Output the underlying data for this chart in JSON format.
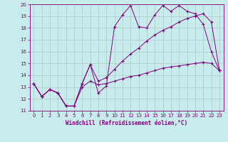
{
  "xlabel": "Windchill (Refroidissement éolien,°C)",
  "background_color": "#c8ecec",
  "line_color": "#800080",
  "grid_color": "#b0c8c8",
  "xlim": [
    -0.5,
    23.5
  ],
  "ylim": [
    11,
    20
  ],
  "xticks": [
    0,
    1,
    2,
    3,
    4,
    5,
    6,
    7,
    8,
    9,
    10,
    11,
    12,
    13,
    14,
    15,
    16,
    17,
    18,
    19,
    20,
    21,
    22,
    23
  ],
  "yticks": [
    11,
    12,
    13,
    14,
    15,
    16,
    17,
    18,
    19,
    20
  ],
  "line1_x": [
    0,
    1,
    2,
    3,
    4,
    5,
    6,
    7,
    8,
    9,
    10,
    11,
    12,
    13,
    14,
    15,
    16,
    17,
    18,
    19,
    20,
    21,
    22,
    23
  ],
  "line1_y": [
    13.3,
    12.2,
    12.8,
    12.5,
    11.4,
    11.4,
    13.3,
    14.9,
    12.5,
    13.1,
    18.1,
    19.1,
    19.9,
    18.1,
    18.0,
    19.1,
    19.9,
    19.4,
    19.9,
    19.4,
    19.2,
    18.3,
    16.0,
    14.4
  ],
  "line2_x": [
    0,
    1,
    2,
    3,
    4,
    5,
    6,
    7,
    8,
    9,
    10,
    11,
    12,
    13,
    14,
    15,
    16,
    17,
    18,
    19,
    20,
    21,
    22,
    23
  ],
  "line2_y": [
    13.3,
    12.2,
    12.8,
    12.5,
    11.4,
    11.4,
    13.3,
    14.9,
    13.5,
    13.8,
    14.5,
    15.2,
    15.8,
    16.3,
    16.9,
    17.4,
    17.8,
    18.1,
    18.5,
    18.8,
    19.0,
    19.2,
    18.5,
    14.4
  ],
  "line3_x": [
    0,
    1,
    2,
    3,
    4,
    5,
    6,
    7,
    8,
    9,
    10,
    11,
    12,
    13,
    14,
    15,
    16,
    17,
    18,
    19,
    20,
    21,
    22,
    23
  ],
  "line3_y": [
    13.3,
    12.2,
    12.8,
    12.5,
    11.4,
    11.4,
    13.0,
    13.5,
    13.2,
    13.3,
    13.5,
    13.7,
    13.9,
    14.0,
    14.2,
    14.4,
    14.6,
    14.7,
    14.8,
    14.9,
    15.0,
    15.1,
    15.0,
    14.4
  ],
  "tick_fontsize": 5,
  "xlabel_fontsize": 5.5,
  "tick_color": "#800080",
  "spine_color": "#800080"
}
